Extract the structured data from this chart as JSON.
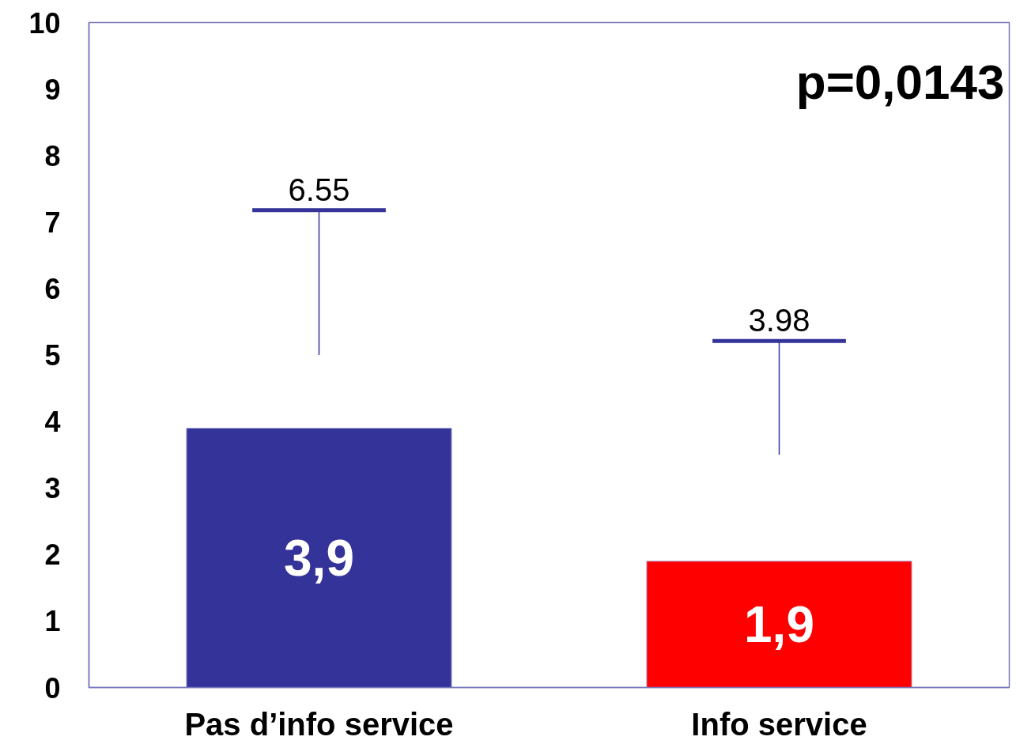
{
  "chart_data": {
    "type": "bar",
    "categories": [
      "Pas d’info service",
      "Info service"
    ],
    "values": [
      3.9,
      1.9
    ],
    "colors": [
      "#333399",
      "#ff0000"
    ],
    "value_labels": [
      "3,9",
      "1,9"
    ],
    "errors": [
      [
        5.0,
        7.18
      ],
      [
        3.5,
        5.21
      ]
    ],
    "annotations": [
      "p=0,0143",
      {
        "text": "6.55",
        "x": "Pas d’info service",
        "y": 7.18
      },
      {
        "text": "3.98",
        "x": "Info service",
        "y": 5.21
      }
    ],
    "ylim": [
      0,
      10
    ],
    "yticks": [
      0,
      1,
      2,
      3,
      4,
      5,
      6,
      7,
      8,
      9,
      10
    ]
  }
}
